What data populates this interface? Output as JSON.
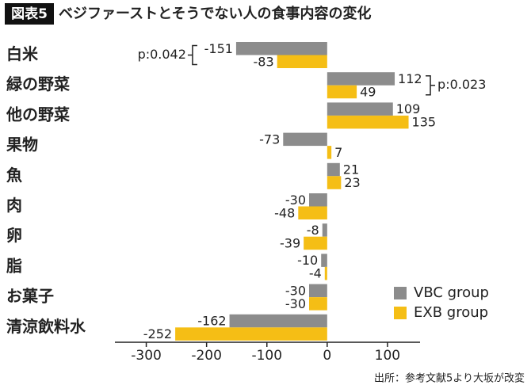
{
  "chart_data": {
    "type": "hbar",
    "figure_label": "図表5",
    "title": "ベジファーストとそうでない人の食事内容の変化",
    "source": "出所：参考文献5より大坂が改変",
    "categories": [
      "白米",
      "緑の野菜",
      "他の野菜",
      "果物",
      "魚",
      "肉",
      "卵",
      "脂",
      "お菓子",
      "清涼飲料水"
    ],
    "series": [
      {
        "name": "VBC group",
        "color": "#8c8c8c",
        "values": [
          -151,
          112,
          109,
          -73,
          21,
          -30,
          -8,
          -10,
          -30,
          -162
        ]
      },
      {
        "name": "EXB group",
        "color": "#f5be15",
        "values": [
          -83,
          49,
          135,
          7,
          23,
          -48,
          -39,
          -4,
          -30,
          -252
        ]
      }
    ],
    "xlim": [
      -352,
      154
    ],
    "xticks": [
      -300,
      -200,
      -100,
      0,
      100
    ],
    "legend": "lower right",
    "annotations": [
      {
        "text": "p:0.042",
        "category": "白米"
      },
      {
        "text": "p:0.023",
        "category": "緑の野菜"
      }
    ]
  }
}
